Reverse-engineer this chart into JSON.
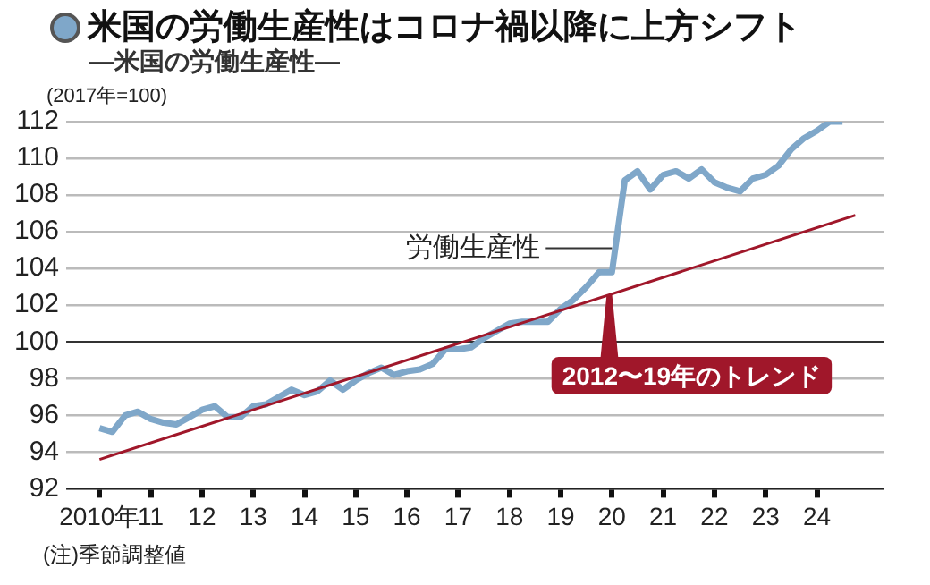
{
  "chart_data": {
    "type": "line",
    "title": "米国の労働生産性はコロナ禍以降に上方シフト",
    "subtitle": "―米国の労働生産性―",
    "ylabel": "(2017年=100)",
    "x": [
      2010,
      2010.25,
      2010.5,
      2010.75,
      2011,
      2011.25,
      2011.5,
      2011.75,
      2012,
      2012.25,
      2012.5,
      2012.75,
      2013,
      2013.25,
      2013.5,
      2013.75,
      2014,
      2014.25,
      2014.5,
      2014.75,
      2015,
      2015.25,
      2015.5,
      2015.75,
      2016,
      2016.25,
      2016.5,
      2016.75,
      2017,
      2017.25,
      2017.5,
      2017.75,
      2018,
      2018.25,
      2018.5,
      2018.75,
      2019,
      2019.25,
      2019.5,
      2019.75,
      2020,
      2020.25,
      2020.5,
      2020.75,
      2021,
      2021.25,
      2021.5,
      2021.75,
      2022,
      2022.25,
      2022.5,
      2022.75,
      2023,
      2023.25,
      2023.5,
      2023.75,
      2024,
      2024.25,
      2024.5
    ],
    "series": [
      {
        "color": "#7fa7c9",
        "values": [
          95.3,
          95.1,
          96.0,
          96.2,
          95.8,
          95.6,
          95.5,
          95.9,
          96.3,
          96.5,
          95.9,
          95.9,
          96.5,
          96.6,
          97.0,
          97.4,
          97.1,
          97.3,
          97.9,
          97.4,
          97.9,
          98.3,
          98.6,
          98.2,
          98.4,
          98.5,
          98.8,
          99.6,
          99.6,
          99.7,
          100.2,
          100.6,
          101.0,
          101.1,
          101.1,
          101.1,
          101.8,
          102.3,
          103.0,
          103.8,
          103.8,
          108.8,
          109.3,
          108.3,
          109.1,
          109.3,
          108.9,
          109.4,
          108.7,
          108.4,
          108.2,
          108.9,
          109.1,
          109.6,
          110.5,
          111.1,
          111.5,
          112.0,
          112.0
        ]
      },
      {
        "type": "line",
        "color": "#a0172a",
        "x": [
          2010,
          2024.75
        ],
        "values": [
          93.6,
          106.9
        ]
      }
    ],
    "xlim": [
      2009.35,
      2025.3
    ],
    "xticks": [
      {
        "value": 2010,
        "label": "2010年"
      },
      {
        "value": 2011,
        "label": "11"
      },
      {
        "value": 2012,
        "label": "12"
      },
      {
        "value": 2013,
        "label": "13"
      },
      {
        "value": 2014,
        "label": "14"
      },
      {
        "value": 2015,
        "label": "15"
      },
      {
        "value": 2016,
        "label": "16"
      },
      {
        "value": 2017,
        "label": "17"
      },
      {
        "value": 2018,
        "label": "18"
      },
      {
        "value": 2019,
        "label": "19"
      },
      {
        "value": 2020,
        "label": "20"
      },
      {
        "value": 2021,
        "label": "21"
      },
      {
        "value": 2022,
        "label": "22"
      },
      {
        "value": 2023,
        "label": "23"
      },
      {
        "value": 2024,
        "label": "24"
      }
    ],
    "ylim": [
      92,
      112
    ],
    "yticks": [
      92,
      94,
      96,
      98,
      100,
      102,
      104,
      106,
      108,
      110,
      112
    ],
    "grid": "y",
    "legend": false,
    "marker": "none",
    "line_style": "solid",
    "ref_lines": [
      {
        "axis": "y",
        "value": 100,
        "color": "#333333"
      }
    ],
    "annotations": [
      {
        "text": "労働生産性",
        "x": 2020,
        "y": 105.1
      },
      {
        "text": "2012〜19年のトレンド",
        "x": 2019.95,
        "y": 102.6
      },
      "(注)季節調整値"
    ]
  }
}
